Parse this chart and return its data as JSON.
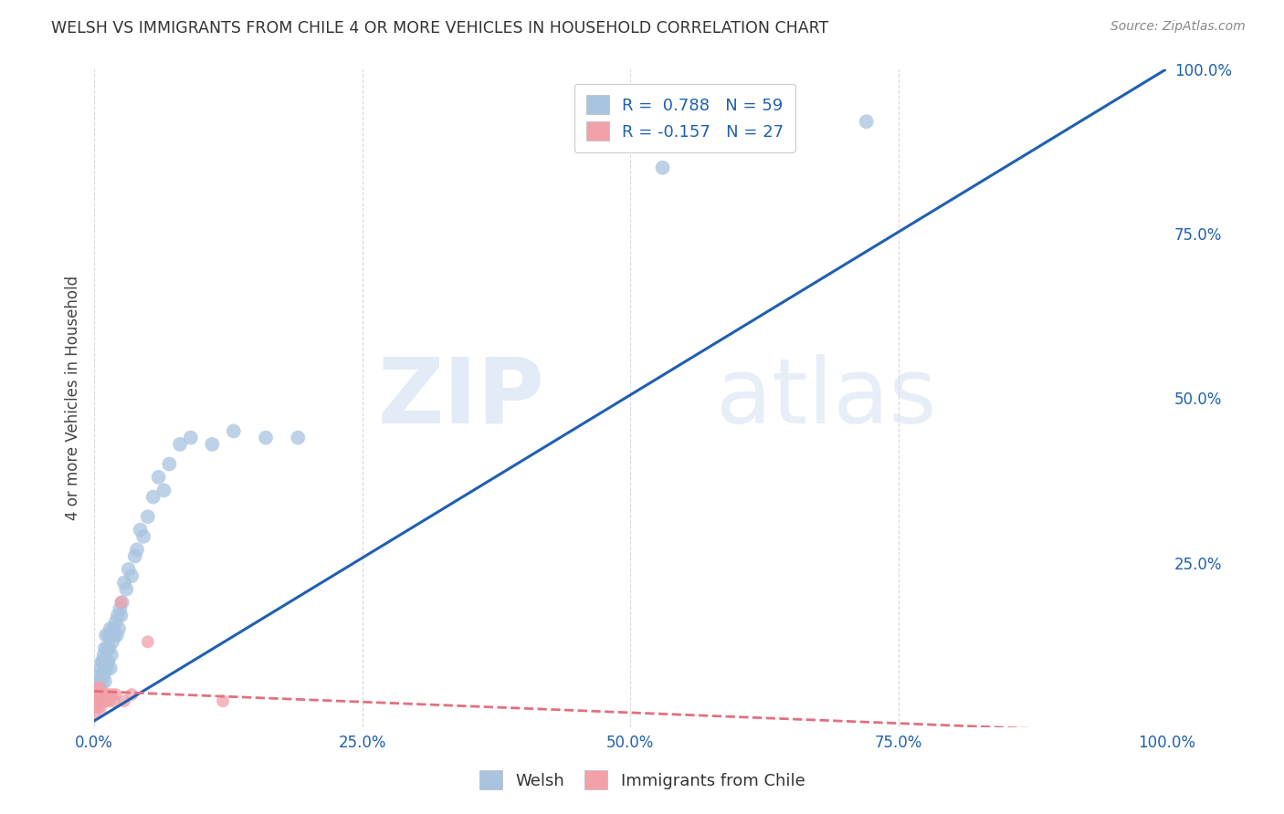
{
  "title": "WELSH VS IMMIGRANTS FROM CHILE 4 OR MORE VEHICLES IN HOUSEHOLD CORRELATION CHART",
  "source": "Source: ZipAtlas.com",
  "ylabel": "4 or more Vehicles in Household",
  "watermark_zip": "ZIP",
  "watermark_atlas": "atlas",
  "legend_welsh_r": "R =  0.788",
  "legend_welsh_n": "N = 59",
  "legend_chile_r": "R = -0.157",
  "legend_chile_n": "N = 27",
  "welsh_color": "#a8c4e0",
  "chile_color": "#f2a0aa",
  "welsh_line_color": "#2060b0",
  "chile_line_color": "#e07080",
  "welsh_scatter_x": [
    0.001,
    0.002,
    0.003,
    0.004,
    0.005,
    0.005,
    0.006,
    0.006,
    0.007,
    0.007,
    0.008,
    0.008,
    0.009,
    0.009,
    0.01,
    0.01,
    0.01,
    0.011,
    0.011,
    0.012,
    0.012,
    0.013,
    0.013,
    0.014,
    0.015,
    0.015,
    0.016,
    0.016,
    0.017,
    0.018,
    0.019,
    0.02,
    0.021,
    0.022,
    0.023,
    0.024,
    0.025,
    0.026,
    0.028,
    0.03,
    0.032,
    0.035,
    0.038,
    0.04,
    0.043,
    0.046,
    0.05,
    0.055,
    0.06,
    0.065,
    0.07,
    0.08,
    0.09,
    0.11,
    0.13,
    0.16,
    0.19,
    0.53,
    0.72
  ],
  "welsh_scatter_y": [
    0.04,
    0.06,
    0.06,
    0.07,
    0.05,
    0.08,
    0.06,
    0.09,
    0.07,
    0.1,
    0.08,
    0.1,
    0.08,
    0.11,
    0.07,
    0.09,
    0.12,
    0.1,
    0.14,
    0.09,
    0.12,
    0.1,
    0.14,
    0.12,
    0.09,
    0.15,
    0.11,
    0.14,
    0.13,
    0.15,
    0.14,
    0.16,
    0.14,
    0.17,
    0.15,
    0.18,
    0.17,
    0.19,
    0.22,
    0.21,
    0.24,
    0.23,
    0.26,
    0.27,
    0.3,
    0.29,
    0.32,
    0.35,
    0.38,
    0.36,
    0.4,
    0.43,
    0.44,
    0.43,
    0.45,
    0.44,
    0.44,
    0.85,
    0.92
  ],
  "chile_scatter_x": [
    0.001,
    0.001,
    0.002,
    0.002,
    0.003,
    0.003,
    0.004,
    0.004,
    0.005,
    0.005,
    0.006,
    0.006,
    0.007,
    0.008,
    0.009,
    0.01,
    0.011,
    0.012,
    0.014,
    0.016,
    0.018,
    0.02,
    0.025,
    0.028,
    0.035,
    0.05,
    0.12
  ],
  "chile_scatter_y": [
    0.02,
    0.04,
    0.03,
    0.05,
    0.04,
    0.06,
    0.03,
    0.05,
    0.04,
    0.06,
    0.03,
    0.05,
    0.04,
    0.05,
    0.04,
    0.05,
    0.04,
    0.05,
    0.04,
    0.05,
    0.04,
    0.05,
    0.19,
    0.04,
    0.05,
    0.13,
    0.04
  ],
  "welsh_line_x": [
    0.0,
    1.0
  ],
  "welsh_line_y": [
    0.01,
    1.0
  ],
  "chile_line_x": [
    0.0,
    1.0
  ],
  "chile_line_y": [
    0.055,
    -0.01
  ],
  "xlim": [
    0,
    1.0
  ],
  "ylim": [
    0,
    1.0
  ],
  "background_color": "#ffffff",
  "grid_color": "#d0d0d0",
  "tick_color": "#2060b0",
  "axis_label_color": "#444444",
  "title_color": "#333333",
  "source_color": "#888888"
}
